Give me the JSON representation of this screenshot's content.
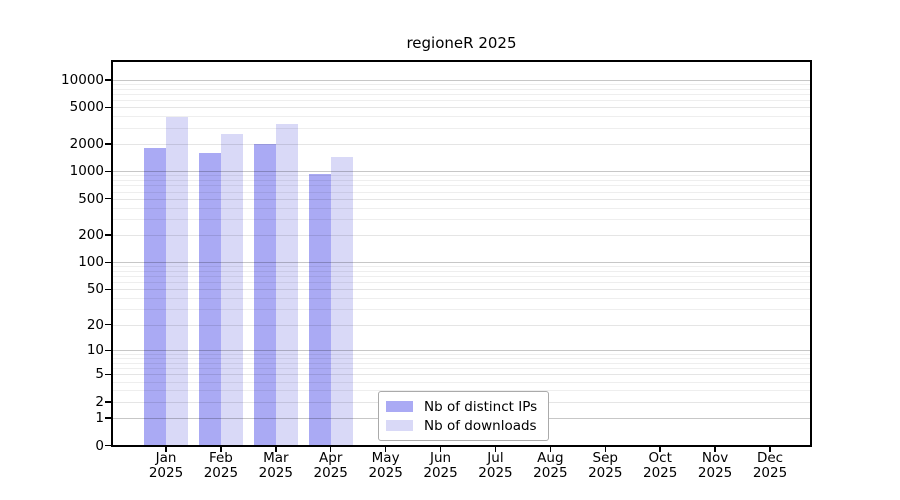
{
  "chart_data": {
    "type": "bar",
    "title": "regioneR 2025",
    "categories": [
      "Jan",
      "Feb",
      "Mar",
      "Apr",
      "May",
      "Jun",
      "Jul",
      "Aug",
      "Sep",
      "Oct",
      "Nov",
      "Dec"
    ],
    "category_year": "2025",
    "series": [
      {
        "name": "Nb of distinct IPs",
        "color": "#aaaaf4",
        "values": [
          1810,
          1570,
          1970,
          930,
          null,
          null,
          null,
          null,
          null,
          null,
          null,
          null
        ]
      },
      {
        "name": "Nb of downloads",
        "color": "#d9d9f7",
        "values": [
          3950,
          2540,
          3290,
          1420,
          null,
          null,
          null,
          null,
          null,
          null,
          null,
          null
        ]
      }
    ],
    "y_scale": "log10(1+x)",
    "y_ticks": [
      0,
      1,
      2,
      5,
      10,
      20,
      50,
      100,
      200,
      500,
      1000,
      2000,
      5000,
      10000
    ],
    "ylim": [
      0,
      15700
    ],
    "xlabel": "",
    "ylabel": "",
    "grid": true,
    "legend_position": "bottom-center"
  }
}
